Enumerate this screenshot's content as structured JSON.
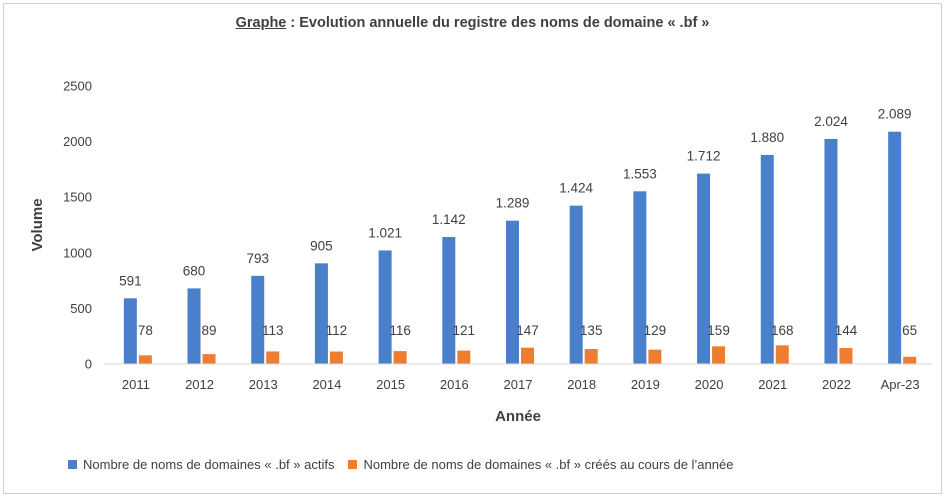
{
  "title_prefix": "Graphe",
  "title_rest": " : Evolution annuelle du registre des noms de domaine « .bf »",
  "colors": {
    "series1": "#4a7fcb",
    "series2": "#ed7d31"
  },
  "chart_data": {
    "type": "bar",
    "title": "Graphe : Evolution annuelle du registre des noms de domaine « .bf »",
    "xlabel": "Année",
    "ylabel": "Volume",
    "ylim": [
      0,
      2500
    ],
    "yticks": [
      "0",
      "500",
      "1000",
      "1500",
      "2000",
      "2500"
    ],
    "grid": false,
    "legend": "bottom",
    "categories": [
      "2011",
      "2012",
      "2013",
      "2014",
      "2015",
      "2016",
      "2017",
      "2018",
      "2019",
      "2020",
      "2021",
      "2022",
      "Apr-23"
    ],
    "series": [
      {
        "name": "Nombre de noms de domaines « .bf » actifs",
        "values": [
          591,
          680,
          793,
          905,
          1021,
          1142,
          1289,
          1424,
          1553,
          1712,
          1880,
          2024,
          2089
        ],
        "labels": [
          "591",
          "680",
          "793",
          "905",
          "1.021",
          "1.142",
          "1.289",
          "1.424",
          "1.553",
          "1.712",
          "1.880",
          "2.024",
          "2.089"
        ]
      },
      {
        "name": "Nombre de noms de domaines « .bf » créés au cours de l’année",
        "values": [
          78,
          89,
          113,
          112,
          116,
          121,
          147,
          135,
          129,
          159,
          168,
          144,
          65
        ],
        "labels": [
          "78",
          "89",
          "113",
          "112",
          "116",
          "121",
          "147",
          "135",
          "129",
          "159",
          "168",
          "144",
          "65"
        ]
      }
    ]
  }
}
